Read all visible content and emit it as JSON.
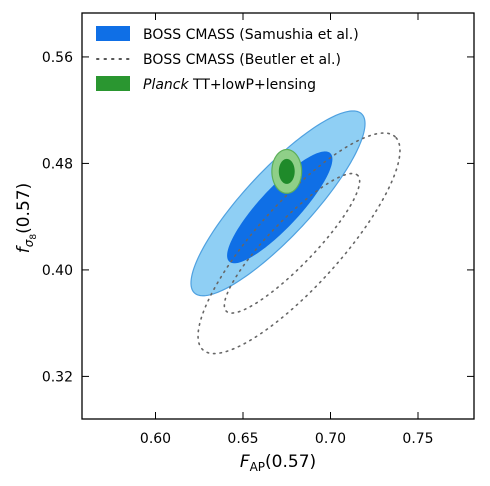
{
  "chart_data": {
    "type": "contour",
    "xlabel": {
      "main": "F",
      "sub": "AP",
      "tail": "(0.57)"
    },
    "ylabel": {
      "main": "f",
      "sub": "σ",
      "subsub": "8",
      "tail": "(0.57)"
    },
    "xlim": [
      0.558,
      0.782
    ],
    "ylim": [
      0.288,
      0.593
    ],
    "xticks": [
      0.6,
      0.65,
      0.7,
      0.75
    ],
    "xtick_labels": [
      "0.60",
      "0.65",
      "0.70",
      "0.75"
    ],
    "yticks": [
      0.32,
      0.4,
      0.48,
      0.56
    ],
    "ytick_labels": [
      "0.32",
      "0.40",
      "0.48",
      "0.56"
    ],
    "legend": {
      "placement": "top-left",
      "entries": [
        {
          "label": "BOSS CMASS (Samushia et al.)",
          "style": "filled",
          "color": "#0f6fe6"
        },
        {
          "label": "BOSS CMASS (Beutler et al.)",
          "style": "dotted",
          "color": "#555555"
        },
        {
          "label_italic": "Planck",
          "label_rest": " TT+lowP+lensing",
          "style": "filled",
          "color": "#2a9630"
        }
      ]
    },
    "contours": [
      {
        "name": "samushia-2sigma",
        "center": [
          0.67,
          0.45
        ],
        "half_axes": [
          0.07,
          0.019
        ],
        "angle_deg": 47,
        "fill": "#8fcff4",
        "stroke": "#4fa1e0"
      },
      {
        "name": "samushia-1sigma",
        "center": [
          0.671,
          0.447
        ],
        "half_axes": [
          0.042,
          0.011
        ],
        "angle_deg": 47,
        "fill": "#0f6fe6",
        "stroke": "#0f6fe6"
      },
      {
        "name": "beutler-2sigma",
        "center": [
          0.682,
          0.42
        ],
        "half_axes": [
          0.082,
          0.024
        ],
        "angle_deg": 48,
        "style": "dotted",
        "stroke": "#666666"
      },
      {
        "name": "beutler-1sigma",
        "center": [
          0.678,
          0.42
        ],
        "half_axes": [
          0.054,
          0.013
        ],
        "angle_deg": 46,
        "style": "dotted",
        "stroke": "#666666"
      },
      {
        "name": "planck-2sigma",
        "center": [
          0.675,
          0.474
        ],
        "half_axes": [
          0.0085,
          0.0125
        ],
        "angle_deg": 0,
        "fill": "#8fcf88",
        "stroke": "#5daf5a"
      },
      {
        "name": "planck-1sigma",
        "center": [
          0.675,
          0.474
        ],
        "half_axes": [
          0.0042,
          0.0068
        ],
        "angle_deg": 0,
        "fill": "#1f8a2a",
        "stroke": "#1f8a2a"
      }
    ]
  }
}
